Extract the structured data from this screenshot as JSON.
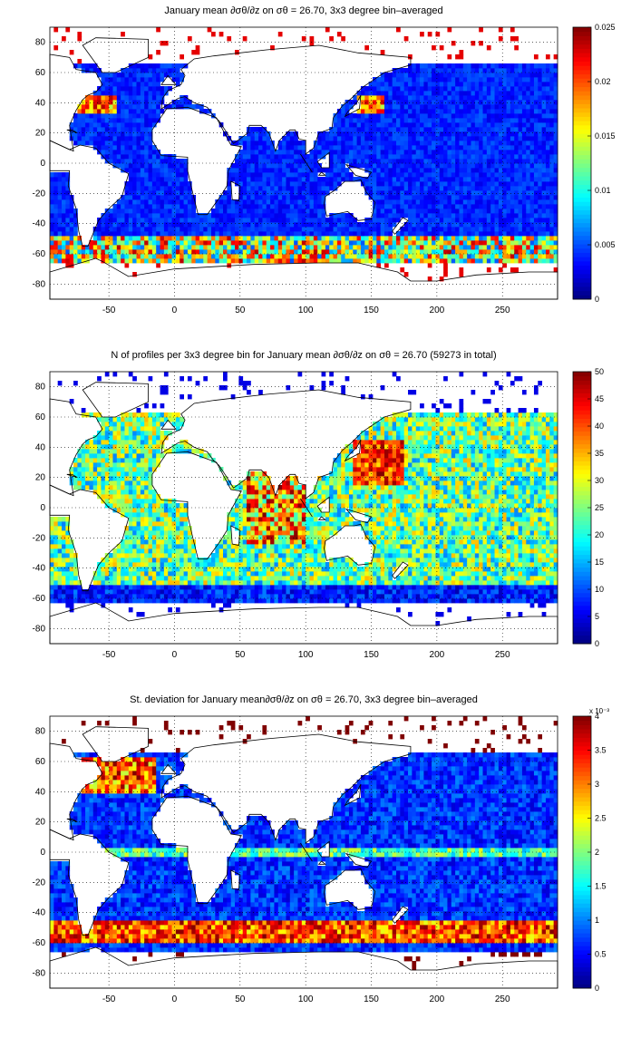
{
  "panels": [
    {
      "title": "January mean ∂σθ/∂z on σθ = 26.70, 3x3 degree bin–averaged",
      "cbar_ticks": [
        "0",
        "0.005",
        "0.01",
        "0.015",
        "0.02",
        "0.025"
      ],
      "cbar_exponent": "",
      "chart_data": {
        "type": "heatmap",
        "title": "January mean ∂σθ/∂z on σθ = 26.70, 3x3 degree bin–averaged",
        "xlim": [
          -95,
          292
        ],
        "ylim": [
          -90,
          90
        ],
        "x_ticks": [
          -50,
          0,
          50,
          100,
          150,
          200,
          250
        ],
        "y_ticks": [
          -80,
          -60,
          -40,
          -20,
          0,
          20,
          40,
          60,
          80
        ],
        "clim": [
          0,
          0.025
        ],
        "colormap": "jet",
        "grid": true,
        "field_summary": "mostly 0.002-0.005 in open ocean; up to 0.015-0.025 near 40N western boundaries and at 50-70S"
      }
    },
    {
      "title": "N of profiles per 3x3 degree bin for January mean ∂σθ/∂z on σθ = 26.70 (59273 in total)",
      "cbar_ticks": [
        "0",
        "5",
        "10",
        "15",
        "20",
        "25",
        "30",
        "35",
        "40",
        "45",
        "50"
      ],
      "cbar_exponent": "",
      "chart_data": {
        "type": "heatmap",
        "title": "N of profiles per 3x3 degree bin for January mean ∂σθ/∂z on σθ = 26.70 (59273 in total)",
        "xlim": [
          -95,
          292
        ],
        "ylim": [
          -90,
          90
        ],
        "x_ticks": [
          -50,
          0,
          50,
          100,
          150,
          200,
          250
        ],
        "y_ticks": [
          -80,
          -60,
          -40,
          -20,
          0,
          20,
          40,
          60,
          80
        ],
        "clim": [
          0,
          50
        ],
        "colormap": "jet",
        "grid": true,
        "total_profiles": 59273,
        "field_summary": "typically 10-30 profiles per bin; saturated (>=50) in NW Pacific near Japan and northern Indian Ocean"
      }
    },
    {
      "title": "St. deviation for January mean∂σθ/∂z on σθ = 26.70, 3x3 degree bin–averaged",
      "cbar_ticks": [
        "0",
        "0.5",
        "1",
        "1.5",
        "2",
        "2.5",
        "3",
        "3.5",
        "4"
      ],
      "cbar_exponent": "x 10⁻³",
      "chart_data": {
        "type": "heatmap",
        "title": "St. deviation for January mean∂σθ/∂z on σθ = 26.70, 3x3 degree bin–averaged",
        "xlim": [
          -95,
          292
        ],
        "ylim": [
          -90,
          90
        ],
        "x_ticks": [
          -50,
          0,
          50,
          100,
          150,
          200,
          250
        ],
        "y_ticks": [
          -80,
          -60,
          -40,
          -20,
          0,
          20,
          40,
          60,
          80
        ],
        "clim": [
          0,
          0.004
        ],
        "colormap": "jet",
        "grid": true,
        "field_summary": "mostly 0.0003-0.0008; saturated (>=0.004) along 45-58S band and in North Atlantic 40-60N"
      }
    }
  ]
}
